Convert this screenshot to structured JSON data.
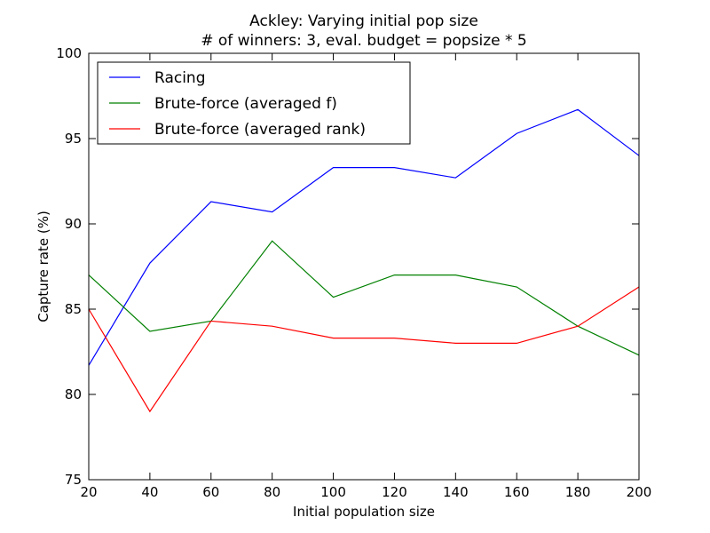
{
  "chart_data": {
    "type": "line",
    "title": "Ackley: Varying initial pop size",
    "subtitle": "# of winners: 3, eval. budget = popsize * 5",
    "xlabel": "Initial population size",
    "ylabel": "Capture rate (%)",
    "xlim": [
      20,
      200
    ],
    "ylim": [
      75,
      100
    ],
    "x": [
      20,
      40,
      60,
      80,
      100,
      120,
      140,
      160,
      180,
      200
    ],
    "xticks": [
      "20",
      "40",
      "60",
      "80",
      "100",
      "120",
      "140",
      "160",
      "180",
      "200"
    ],
    "yticks": [
      "75",
      "80",
      "85",
      "90",
      "95",
      "100"
    ],
    "grid": false,
    "legend_position": "top-left",
    "series": [
      {
        "name": "Racing",
        "color": "#0000ff",
        "values": [
          81.7,
          87.7,
          91.3,
          90.7,
          93.3,
          93.3,
          92.7,
          95.3,
          96.7,
          94.0
        ]
      },
      {
        "name": "Brute-force (averaged f)",
        "color": "#008000",
        "values": [
          87.0,
          83.7,
          84.3,
          89.0,
          85.7,
          87.0,
          87.0,
          86.3,
          84.0,
          82.3
        ]
      },
      {
        "name": "Brute-force (averaged rank)",
        "color": "#ff0000",
        "values": [
          85.0,
          79.0,
          84.3,
          84.0,
          83.3,
          83.3,
          83.0,
          83.0,
          84.0,
          86.3
        ]
      }
    ]
  }
}
